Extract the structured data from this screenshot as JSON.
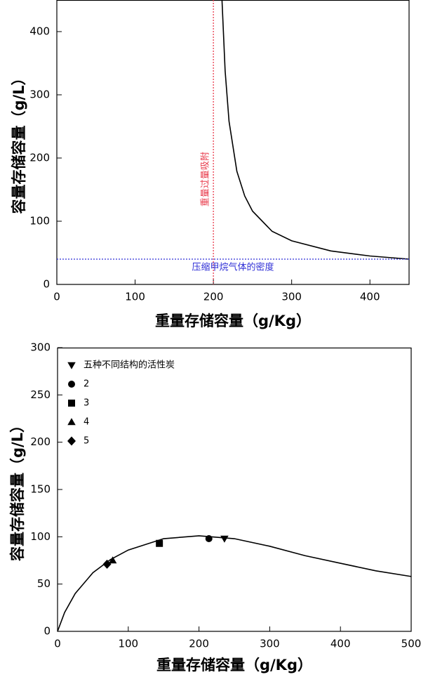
{
  "chart_data": [
    {
      "type": "line",
      "x_label": "重量存储容量（g/Kg）",
      "y_label": "容量存储容量（g/L）",
      "x": [
        211,
        215,
        220,
        230,
        240,
        250,
        275,
        300,
        350,
        400,
        450
      ],
      "series": [
        {
          "color": "#000000",
          "values": [
            450,
            338,
            258,
            179,
            140,
            116,
            84,
            69,
            53,
            45,
            40
          ]
        }
      ],
      "annotations": [
        {
          "orient": "vertical",
          "value": 200,
          "label": "重量过量吸附",
          "color": "#e8394a"
        },
        {
          "orient": "horizontal",
          "value": 40,
          "label": "压缩甲烷气体的密度",
          "color": "#2f2fd6"
        }
      ],
      "xlim": [
        0,
        450
      ],
      "ylim": [
        0,
        450
      ],
      "xticks": [
        0,
        100,
        200,
        300,
        400
      ],
      "yticks": [
        0,
        100,
        200,
        300,
        400
      ]
    },
    {
      "type": "scatter",
      "x_label": "重量存储容量（g/Kg）",
      "y_label": "容量存储容量（g/L）",
      "series": [
        {
          "name": "五种不同结构的活性炭",
          "marker": "triangle-down",
          "color": "#000000",
          "x": [
            236
          ],
          "values": [
            98
          ]
        },
        {
          "name": "2",
          "marker": "circle",
          "color": "#000000",
          "x": [
            214
          ],
          "values": [
            98
          ]
        },
        {
          "name": "3",
          "marker": "square",
          "color": "#000000",
          "x": [
            144
          ],
          "values": [
            93
          ]
        },
        {
          "name": "4",
          "marker": "triangle-up",
          "color": "#000000",
          "x": [
            78
          ],
          "values": [
            75
          ]
        },
        {
          "name": "5",
          "marker": "diamond",
          "color": "#000000",
          "x": [
            70
          ],
          "values": [
            71
          ]
        }
      ],
      "fit": {
        "color": "#000000",
        "x": [
          0,
          10,
          25,
          50,
          75,
          100,
          150,
          200,
          250,
          300,
          350,
          400,
          450,
          500
        ],
        "values": [
          0,
          20,
          40,
          62,
          76,
          86,
          98,
          101,
          98,
          90,
          80,
          72,
          64,
          58
        ]
      },
      "xlim": [
        0,
        500
      ],
      "ylim": [
        0,
        300
      ],
      "xticks": [
        0,
        100,
        200,
        300,
        400,
        500
      ],
      "yticks": [
        0,
        50,
        100,
        150,
        200,
        250,
        300
      ]
    }
  ]
}
